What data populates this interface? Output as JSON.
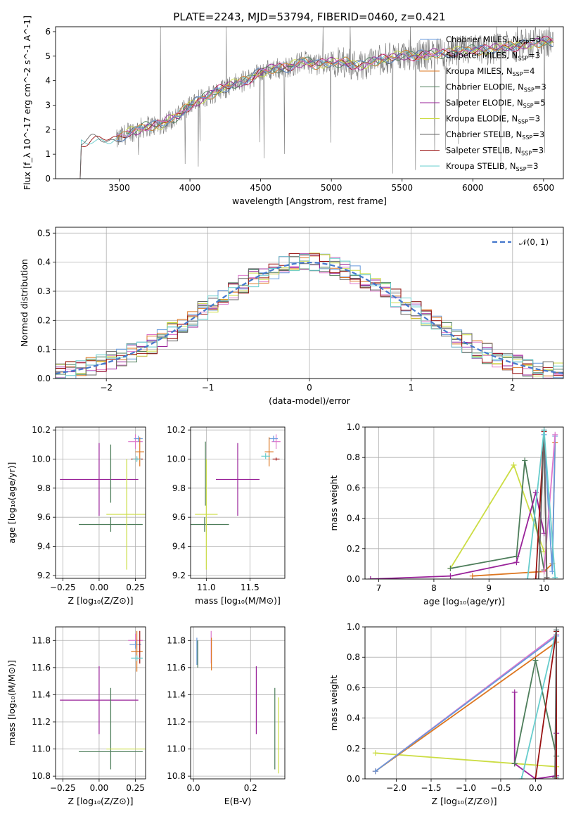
{
  "title": "PLATE=2243, MJD=53794, FIBERID=0460, z=0.421",
  "colors": {
    "Chabrier MILES": "#6699dd",
    "Salpeter MILES": "#dd77cc",
    "Kroupa MILES": "#dd7722",
    "Chabrier ELODIE": "#4d7d5a",
    "Salpeter ELODIE": "#992299",
    "Kroupa ELODIE": "#ccdd44",
    "Chabrier STELIB": "#666666",
    "Salpeter STELIB": "#991111",
    "Kroupa STELIB": "#66cccc",
    "data": "#777777",
    "gauss": "#4477cc"
  },
  "chart_data": [
    {
      "id": "spectrum",
      "type": "line",
      "xlabel": "wavelength [Angstrom, rest frame]",
      "ylabel": "Flux [f_λ 10^-17 erg cm^-2 s^-1 A^-1]",
      "xlim": [
        3050,
        6640
      ],
      "ylim": [
        0,
        6.2
      ],
      "xticks": [
        "3500",
        "4000",
        "4500",
        "5000",
        "5500",
        "6000",
        "6500"
      ],
      "yticks": [
        "0",
        "1",
        "2",
        "3",
        "4",
        "5",
        "6"
      ],
      "legend_position": "top-right",
      "legend": [
        {
          "model": "Chabrier MILES",
          "text": "Chabrier MILES, N",
          "sub": "SSP",
          "rest": "=3"
        },
        {
          "model": "Salpeter MILES",
          "text": "Salpeter MILES, N",
          "sub": "SSP",
          "rest": "=3"
        },
        {
          "model": "Kroupa MILES",
          "text": "Kroupa MILES, N",
          "sub": "SSP",
          "rest": "=4"
        },
        {
          "model": "Chabrier ELODIE",
          "text": "Chabrier ELODIE, N",
          "sub": "SSP",
          "rest": "=3"
        },
        {
          "model": "Salpeter ELODIE",
          "text": "Salpeter ELODIE, N",
          "sub": "SSP",
          "rest": "=5"
        },
        {
          "model": "Kroupa ELODIE",
          "text": "Kroupa ELODIE, N",
          "sub": "SSP",
          "rest": "=3"
        },
        {
          "model": "Chabrier STELIB",
          "text": "Chabrier STELIB, N",
          "sub": "SSP",
          "rest": "=3"
        },
        {
          "model": "Salpeter STELIB",
          "text": "Salpeter STELIB, N",
          "sub": "SSP",
          "rest": "=3"
        },
        {
          "model": "Kroupa STELIB",
          "text": "Kroupa STELIB, N",
          "sub": "SSP",
          "rest": "=3"
        }
      ],
      "continuum": [
        [
          3200,
          0
        ],
        [
          3230,
          1.45
        ],
        [
          3300,
          1.6
        ],
        [
          3400,
          1.6
        ],
        [
          3480,
          1.55
        ],
        [
          3550,
          1.85
        ],
        [
          3650,
          2.05
        ],
        [
          3700,
          2.15
        ],
        [
          3800,
          2.2
        ],
        [
          3850,
          2.4
        ],
        [
          3930,
          2.6
        ],
        [
          3970,
          2.9
        ],
        [
          4000,
          3.0
        ],
        [
          4100,
          3.3
        ],
        [
          4200,
          3.6
        ],
        [
          4300,
          3.85
        ],
        [
          4400,
          4.0
        ],
        [
          4500,
          4.35
        ],
        [
          4600,
          4.5
        ],
        [
          4700,
          4.55
        ],
        [
          4800,
          4.8
        ],
        [
          4900,
          4.65
        ],
        [
          5000,
          4.75
        ],
        [
          5100,
          4.75
        ],
        [
          5200,
          4.6
        ],
        [
          5300,
          4.8
        ],
        [
          5400,
          4.9
        ],
        [
          5500,
          5.05
        ],
        [
          5600,
          5.0
        ],
        [
          5700,
          5.1
        ],
        [
          5800,
          5.1
        ],
        [
          5900,
          5.2
        ],
        [
          6000,
          5.25
        ],
        [
          6100,
          5.25
        ],
        [
          6200,
          5.35
        ],
        [
          6300,
          5.4
        ],
        [
          6400,
          5.5
        ],
        [
          6500,
          5.6
        ],
        [
          6570,
          5.6
        ]
      ],
      "data_start": 3480
    },
    {
      "id": "residuals",
      "type": "bar",
      "xlabel": "(data-model)/error",
      "ylabel": "Normed distribution",
      "xlim": [
        -2.5,
        2.5
      ],
      "ylim": [
        0,
        0.52
      ],
      "xticks": [
        "−2",
        "−1",
        "0",
        "1",
        "2"
      ],
      "yticks": [
        "0.0",
        "0.1",
        "0.2",
        "0.3",
        "0.4",
        "0.5"
      ],
      "legend_position": "top-right",
      "reference_label": "𝒩(0, 1)",
      "bin_width": 0.1
    },
    {
      "id": "age-vs-Z",
      "type": "scatter",
      "xlabel": "Z [log₁₀(Z/Z⊙)]",
      "ylabel": "age  [log₁₀(age/yr)]",
      "xlim": [
        -0.3,
        0.32
      ],
      "ylim": [
        9.18,
        10.22
      ],
      "xticks": [
        "−0.25",
        "0.00",
        "0.25"
      ],
      "yticks": [
        "9.2",
        "9.4",
        "9.6",
        "9.8",
        "10.0",
        "10.2"
      ],
      "points": [
        {
          "model": "Salpeter ELODIE",
          "x": 0.0,
          "xerr": 0.27,
          "y": 9.86,
          "yerr": 0.25
        },
        {
          "model": "Chabrier ELODIE",
          "x": 0.08,
          "xerr": 0.22,
          "y": 9.55,
          "yerr": 0.05
        },
        {
          "model": "Chabrier ELODIE",
          "x": 0.08,
          "xerr": 0.0,
          "y": 9.9,
          "yerr": 0.2
        },
        {
          "model": "Kroupa ELODIE",
          "x": 0.19,
          "xerr": 0.14,
          "y": 9.62,
          "yerr": 0.38
        },
        {
          "model": "Salpeter MILES",
          "x": 0.25,
          "xerr": 0.05,
          "y": 10.12,
          "yerr": 0.05
        },
        {
          "model": "Chabrier MILES",
          "x": 0.27,
          "xerr": 0.03,
          "y": 10.14,
          "yerr": 0.02
        },
        {
          "model": "Kroupa MILES",
          "x": 0.28,
          "xerr": 0.03,
          "y": 10.05,
          "yerr": 0.1
        },
        {
          "model": "Salpeter STELIB",
          "x": 0.26,
          "xerr": 0.04,
          "y": 10.0,
          "yerr": 0.01
        },
        {
          "model": "Kroupa STELIB",
          "x": 0.26,
          "xerr": 0.03,
          "y": 10.0,
          "yerr": 0.02
        }
      ]
    },
    {
      "id": "age-vs-mass",
      "type": "scatter",
      "xlabel": "mass [log₁₀(M/M⊙)]",
      "ylabel": "",
      "xlim": [
        10.82,
        11.9
      ],
      "ylim": [
        9.18,
        10.22
      ],
      "xticks": [
        "11.0",
        "11.5"
      ],
      "yticks": [
        "9.2",
        "9.4",
        "9.6",
        "9.8",
        "10.0",
        "10.2"
      ],
      "points": [
        {
          "model": "Salpeter ELODIE",
          "x": 11.36,
          "xerr": 0.25,
          "y": 9.86,
          "yerr": 0.25
        },
        {
          "model": "Chabrier ELODIE",
          "x": 10.98,
          "xerr": 0.28,
          "y": 9.55,
          "yerr": 0.05
        },
        {
          "model": "Chabrier ELODIE",
          "x": 10.99,
          "xerr": 0.0,
          "y": 9.9,
          "yerr": 0.22
        },
        {
          "model": "Kroupa ELODIE",
          "x": 11.0,
          "xerr": 0.13,
          "y": 9.62,
          "yerr": 0.38
        },
        {
          "model": "Salpeter MILES",
          "x": 11.8,
          "xerr": 0.05,
          "y": 10.12,
          "yerr": 0.05
        },
        {
          "model": "Chabrier MILES",
          "x": 11.77,
          "xerr": 0.05,
          "y": 10.14,
          "yerr": 0.02
        },
        {
          "model": "Kroupa MILES",
          "x": 11.72,
          "xerr": 0.05,
          "y": 10.05,
          "yerr": 0.1
        },
        {
          "model": "Salpeter STELIB",
          "x": 11.8,
          "xerr": 0.04,
          "y": 10.0,
          "yerr": 0.01
        },
        {
          "model": "Kroupa STELIB",
          "x": 11.68,
          "xerr": 0.05,
          "y": 10.02,
          "yerr": 0.02
        }
      ]
    },
    {
      "id": "weight-vs-age",
      "type": "line",
      "xlabel": "age  [log₁₀(age/yr)]",
      "ylabel": "mass weight",
      "xlim": [
        6.75,
        10.35
      ],
      "ylim": [
        0,
        1.0
      ],
      "xticks": [
        "7",
        "8",
        "9",
        "10"
      ],
      "yticks": [
        "0.0",
        "0.2",
        "0.4",
        "0.6",
        "0.8",
        "1.0"
      ],
      "series": [
        {
          "model": "Kroupa ELODIE",
          "x": [
            8.3,
            9.45,
            10.0
          ],
          "y": [
            0.07,
            0.75,
            0.18
          ]
        },
        {
          "model": "Chabrier ELODIE",
          "x": [
            8.3,
            9.5,
            9.65,
            10.0
          ],
          "y": [
            0.07,
            0.15,
            0.78,
            0.06
          ]
        },
        {
          "model": "Salpeter ELODIE",
          "x": [
            6.85,
            8.3,
            9.5,
            9.85,
            10.0
          ],
          "y": [
            0.0,
            0.02,
            0.11,
            0.57,
            0.3
          ]
        },
        {
          "model": "Kroupa MILES",
          "x": [
            8.7,
            10.0,
            10.15,
            10.2
          ],
          "y": [
            0.02,
            0.05,
            0.1,
            0.9
          ]
        },
        {
          "model": "Chabrier MILES",
          "x": [
            10.0,
            10.15,
            10.2
          ],
          "y": [
            0.95,
            0.05,
            0.94
          ]
        },
        {
          "model": "Salpeter MILES",
          "x": [
            10.0,
            10.2
          ],
          "y": [
            0.05,
            0.95
          ]
        },
        {
          "model": "Salpeter STELIB",
          "x": [
            9.85,
            10.0,
            10.05
          ],
          "y": [
            0.0,
            0.97,
            0.0
          ]
        },
        {
          "model": "Chabrier STELIB",
          "x": [
            9.9,
            10.0,
            10.05
          ],
          "y": [
            0.0,
            0.98,
            0.01
          ]
        },
        {
          "model": "Kroupa STELIB",
          "x": [
            9.7,
            10.0,
            10.2
          ],
          "y": [
            0.0,
            0.98,
            0.01
          ]
        }
      ]
    },
    {
      "id": "mass-vs-Z",
      "type": "scatter",
      "xlabel": "Z [log₁₀(Z/Z⊙)]",
      "ylabel": "mass [log₁₀(M/M⊙)]",
      "xlim": [
        -0.3,
        0.32
      ],
      "ylim": [
        10.78,
        11.9
      ],
      "xticks": [
        "−0.25",
        "0.00",
        "0.25"
      ],
      "yticks": [
        "10.8",
        "11.0",
        "11.2",
        "11.4",
        "11.6",
        "11.8"
      ],
      "points": [
        {
          "model": "Salpeter ELODIE",
          "x": 0.0,
          "xerr": 0.27,
          "y": 11.36,
          "yerr": 0.25
        },
        {
          "model": "Chabrier ELODIE",
          "x": 0.08,
          "xerr": 0.22,
          "y": 10.98,
          "yerr": 0.0
        },
        {
          "model": "Chabrier ELODIE",
          "x": 0.08,
          "xerr": 0.0,
          "y": 11.15,
          "yerr": 0.3
        },
        {
          "model": "Kroupa ELODIE",
          "x": 0.19,
          "xerr": 0.14,
          "y": 11.0,
          "yerr": 0.0
        },
        {
          "model": "Salpeter MILES",
          "x": 0.25,
          "xerr": 0.05,
          "y": 11.8,
          "yerr": 0.05
        },
        {
          "model": "Chabrier MILES",
          "x": 0.25,
          "xerr": 0.04,
          "y": 11.77,
          "yerr": 0.03
        },
        {
          "model": "Kroupa MILES",
          "x": 0.26,
          "xerr": 0.04,
          "y": 11.72,
          "yerr": 0.15
        },
        {
          "model": "Salpeter STELIB",
          "x": 0.28,
          "xerr": 0.0,
          "y": 11.75,
          "yerr": 0.12
        },
        {
          "model": "Kroupa STELIB",
          "x": 0.26,
          "xerr": 0.04,
          "y": 11.67,
          "yerr": 0.02
        }
      ]
    },
    {
      "id": "mass-vs-EBV",
      "type": "scatter",
      "xlabel": "E(B-V)",
      "ylabel": "",
      "xlim": [
        -0.01,
        0.32
      ],
      "ylim": [
        10.78,
        11.9
      ],
      "xticks": [
        "0.0",
        "0.2"
      ],
      "yticks": [
        "10.8",
        "11.0",
        "11.2",
        "11.4",
        "11.6",
        "11.8"
      ],
      "points": [
        {
          "model": "Chabrier MILES",
          "x": 0.012,
          "y": 11.72,
          "yerr": 0.1
        },
        {
          "model": "Chabrier ELODIE",
          "x": 0.015,
          "y": 11.7,
          "yerr": 0.1
        },
        {
          "model": "Salpeter MILES",
          "x": 0.062,
          "y": 11.75,
          "yerr": 0.12
        },
        {
          "model": "Kroupa MILES",
          "x": 0.063,
          "y": 11.7,
          "yerr": 0.12
        },
        {
          "model": "Salpeter ELODIE",
          "x": 0.22,
          "y": 11.36,
          "yerr": 0.25
        },
        {
          "model": "Chabrier ELODIE",
          "x": 0.285,
          "y": 11.15,
          "yerr": 0.3
        },
        {
          "model": "Kroupa ELODIE",
          "x": 0.298,
          "y": 11.1,
          "yerr": 0.28
        }
      ]
    },
    {
      "id": "weight-vs-Z",
      "type": "line",
      "xlabel": "Z [log₁₀(Z/Z⊙)]",
      "ylabel": "mass weight",
      "xlim": [
        -2.45,
        0.4
      ],
      "ylim": [
        0,
        1.0
      ],
      "xticks": [
        "−2.0",
        "−1.5",
        "−1.0",
        "−0.5",
        "0.0"
      ],
      "yticks": [
        "0.0",
        "0.2",
        "0.4",
        "0.6",
        "0.8",
        "1.0"
      ],
      "series": [
        {
          "model": "Kroupa ELODIE",
          "x": [
            -2.3,
            0.3
          ],
          "y": [
            0.17,
            0.08
          ]
        },
        {
          "model": "Salpeter MILES",
          "x": [
            -2.3,
            0.3
          ],
          "y": [
            0.05,
            0.95
          ]
        },
        {
          "model": "Kroupa MILES",
          "x": [
            -2.3,
            0.3
          ],
          "y": [
            0.05,
            0.9
          ]
        },
        {
          "model": "Chabrier MILES",
          "x": [
            -2.3,
            0.3
          ],
          "y": [
            0.05,
            0.94
          ]
        },
        {
          "model": "Salpeter ELODIE",
          "x": [
            -0.3,
            -0.3,
            0.0,
            0.3,
            0.3
          ],
          "y": [
            0.57,
            0.1,
            0.0,
            0.02,
            0.3
          ]
        },
        {
          "model": "Chabrier ELODIE",
          "x": [
            -0.3,
            0.0,
            0.3
          ],
          "y": [
            0.1,
            0.78,
            0.15
          ]
        },
        {
          "model": "Kroupa STELIB",
          "x": [
            -0.2,
            0.3,
            0.3
          ],
          "y": [
            0.0,
            0.98,
            0.01
          ]
        },
        {
          "model": "Salpeter STELIB",
          "x": [
            0.0,
            0.3,
            0.3
          ],
          "y": [
            0.0,
            0.97,
            0.0
          ]
        },
        {
          "model": "Chabrier STELIB",
          "x": [
            0.28,
            0.3
          ],
          "y": [
            0.01,
            0.98
          ]
        }
      ]
    }
  ]
}
